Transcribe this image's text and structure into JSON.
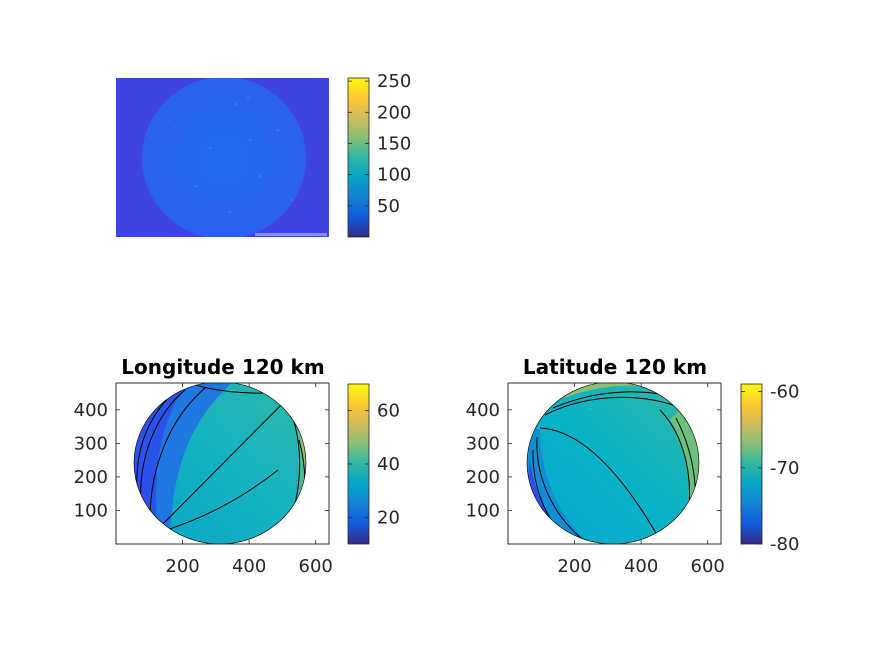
{
  "figure": {
    "colormap": "parula",
    "colormap_stops": [
      "#352a87",
      "#0f5cdd",
      "#1481d6",
      "#06a4ca",
      "#2eb7a4",
      "#87bf77",
      "#d1bb59",
      "#fec832",
      "#f9fb0e"
    ],
    "background": "#ffffff"
  },
  "chart_data": [
    {
      "type": "image",
      "title": "",
      "colorbar": {
        "range": [
          0,
          255
        ],
        "ticks": [
          50,
          100,
          150,
          200,
          250
        ]
      },
      "axis_visible": false,
      "background_level": 20,
      "disk_level": 40
    },
    {
      "type": "heatmap",
      "title": "Longitude 120 km",
      "x_ticks": [
        200,
        400,
        600
      ],
      "y_ticks": [
        100,
        200,
        300,
        400
      ],
      "xlim": [
        0,
        640
      ],
      "ylim": [
        0,
        480
      ],
      "colorbar": {
        "range": [
          10,
          70
        ],
        "ticks": [
          20,
          40,
          60
        ]
      },
      "contours": true
    },
    {
      "type": "heatmap",
      "title": "Latitude 120 km",
      "x_ticks": [
        200,
        400,
        600
      ],
      "y_ticks": [
        100,
        200,
        300,
        400
      ],
      "xlim": [
        0,
        640
      ],
      "ylim": [
        0,
        480
      ],
      "colorbar": {
        "range": [
          -80,
          -59
        ],
        "ticks": [
          -60,
          -70,
          -80
        ]
      },
      "contours": true
    }
  ]
}
